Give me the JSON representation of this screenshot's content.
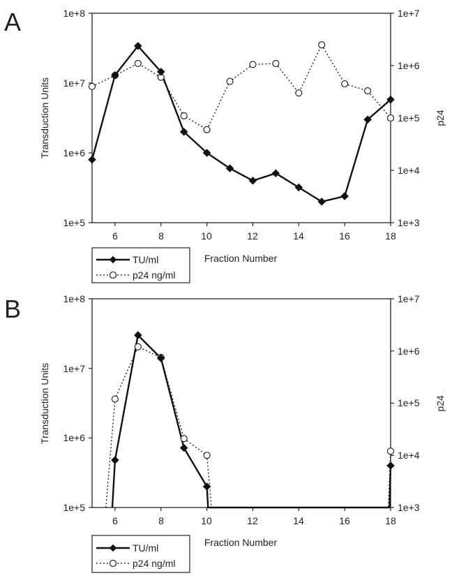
{
  "chart_data": [
    {
      "panel": "A",
      "type": "line",
      "xlabel": "Fraction Number",
      "ylabel": "Transduction Units",
      "y2label": "p24",
      "xlim": [
        5,
        18
      ],
      "ylim": [
        100000,
        100000000
      ],
      "y2lim": [
        1000,
        10000000
      ],
      "yscale": "log",
      "y2scale": "log",
      "x_ticks": [
        "6",
        "8",
        "10",
        "12",
        "14",
        "16",
        "18"
      ],
      "y_ticks": [
        "1e+5",
        "1e+6",
        "1e+7",
        "1e+8"
      ],
      "y2_ticks": [
        "1e+3",
        "1e+4",
        "1e+5",
        "1e+6",
        "1e+7"
      ],
      "legend": [
        "TU/ml",
        "p24 ng/ml"
      ],
      "series": [
        {
          "name": "TU/ml",
          "axis": "left",
          "x": [
            5,
            6,
            7,
            8,
            9,
            10,
            11,
            12,
            13,
            14,
            15,
            16,
            17,
            18
          ],
          "values": [
            800000,
            13000000,
            34000000,
            14500000,
            2000000,
            1000000,
            600000,
            400000,
            510000,
            320000,
            200000,
            240000,
            3000000,
            5800000
          ]
        },
        {
          "name": "p24 ng/ml",
          "axis": "right",
          "x": [
            5,
            6,
            7,
            8,
            9,
            10,
            11,
            12,
            13,
            14,
            15,
            16,
            17,
            18
          ],
          "values": [
            400000,
            650000,
            1100000,
            600000,
            110000,
            60000,
            500000,
            1050000,
            1100000,
            300000,
            2500000,
            450000,
            330000,
            100000
          ]
        }
      ]
    },
    {
      "panel": "B",
      "type": "line",
      "xlabel": "Fraction Number",
      "ylabel": "Transduction Units",
      "y2label": "p24",
      "xlim": [
        5,
        18
      ],
      "ylim": [
        100000,
        100000000
      ],
      "y2lim": [
        1000,
        10000000
      ],
      "yscale": "log",
      "y2scale": "log",
      "x_ticks": [
        "6",
        "8",
        "10",
        "12",
        "14",
        "16",
        "18"
      ],
      "y_ticks": [
        "1e+5",
        "1e+6",
        "1e+7",
        "1e+8"
      ],
      "y2_ticks": [
        "1e+3",
        "1e+4",
        "1e+5",
        "1e+6",
        "1e+7"
      ],
      "legend": [
        "TU/ml",
        "p24 ng/ml"
      ],
      "series": [
        {
          "name": "TU/ml",
          "axis": "left",
          "x": [
            5.88,
            6,
            7,
            8,
            9,
            10,
            10.05,
            17.95,
            18
          ],
          "values": [
            100000,
            480000,
            30000000,
            14000000,
            720000,
            200000,
            100000,
            100000,
            400000
          ],
          "markers": [
            false,
            true,
            true,
            true,
            true,
            true,
            false,
            false,
            true
          ]
        },
        {
          "name": "p24 ng/ml",
          "axis": "right",
          "x": [
            5.6,
            6,
            7,
            8,
            9,
            10,
            10.2,
            17.9,
            18
          ],
          "values": [
            1000,
            120000,
            1200000,
            750000,
            21000,
            10000,
            1000,
            1000,
            12000
          ],
          "markers": [
            false,
            true,
            true,
            true,
            true,
            true,
            false,
            false,
            true
          ]
        }
      ]
    }
  ]
}
